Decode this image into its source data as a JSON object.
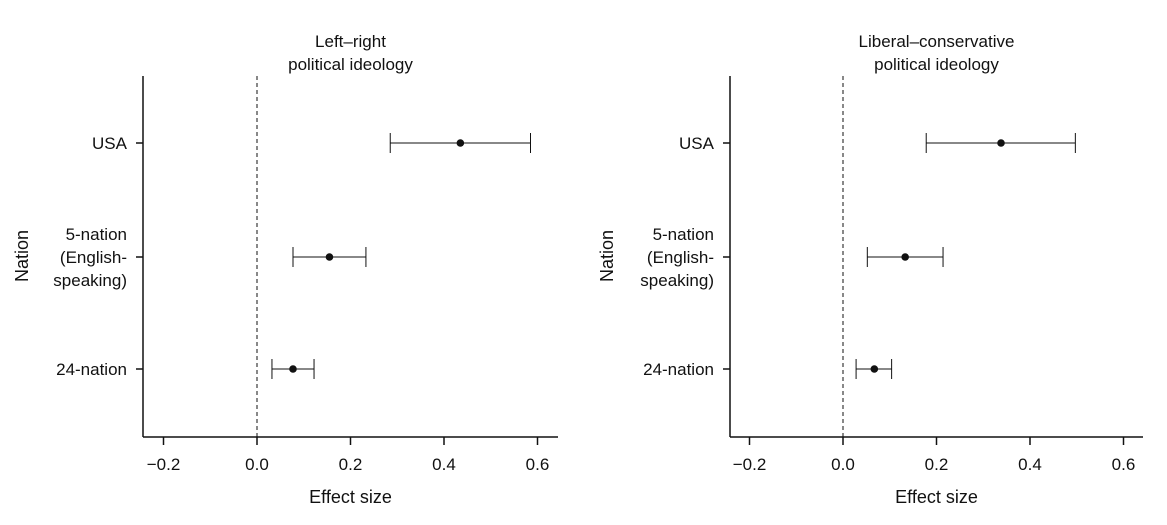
{
  "chart_data": [
    {
      "type": "forest",
      "title": [
        "Left–right",
        "political ideology"
      ],
      "xlabel": "Effect size",
      "ylabel": "Nation",
      "xlim": [
        -0.25,
        0.63
      ],
      "xticks": [
        -0.2,
        0.0,
        0.2,
        0.4,
        0.6
      ],
      "xtick_labels": [
        "−0.2",
        "0.0",
        "0.2",
        "0.4",
        "0.6"
      ],
      "reference_line": 0.0,
      "grid": false,
      "categories": [
        {
          "label": [
            "USA"
          ],
          "estimate": 0.435,
          "ci_low": 0.285,
          "ci_high": 0.585
        },
        {
          "label": [
            "5-nation",
            "(English-",
            "speaking)"
          ],
          "estimate": 0.155,
          "ci_low": 0.077,
          "ci_high": 0.233
        },
        {
          "label": [
            "24-nation"
          ],
          "estimate": 0.077,
          "ci_low": 0.032,
          "ci_high": 0.122
        }
      ]
    },
    {
      "type": "forest",
      "title": [
        "Liberal–conservative",
        "political ideology"
      ],
      "xlabel": "Effect size",
      "ylabel": "Nation",
      "xlim": [
        -0.25,
        0.63
      ],
      "xticks": [
        -0.2,
        0.0,
        0.2,
        0.4,
        0.6
      ],
      "xtick_labels": [
        "−0.2",
        "0.0",
        "0.2",
        "0.4",
        "0.6"
      ],
      "reference_line": 0.0,
      "grid": false,
      "categories": [
        {
          "label": [
            "USA"
          ],
          "estimate": 0.338,
          "ci_low": 0.178,
          "ci_high": 0.497
        },
        {
          "label": [
            "5-nation",
            "(English-",
            "speaking)"
          ],
          "estimate": 0.133,
          "ci_low": 0.052,
          "ci_high": 0.214
        },
        {
          "label": [
            "24-nation"
          ],
          "estimate": 0.067,
          "ci_low": 0.028,
          "ci_high": 0.104
        }
      ]
    }
  ]
}
